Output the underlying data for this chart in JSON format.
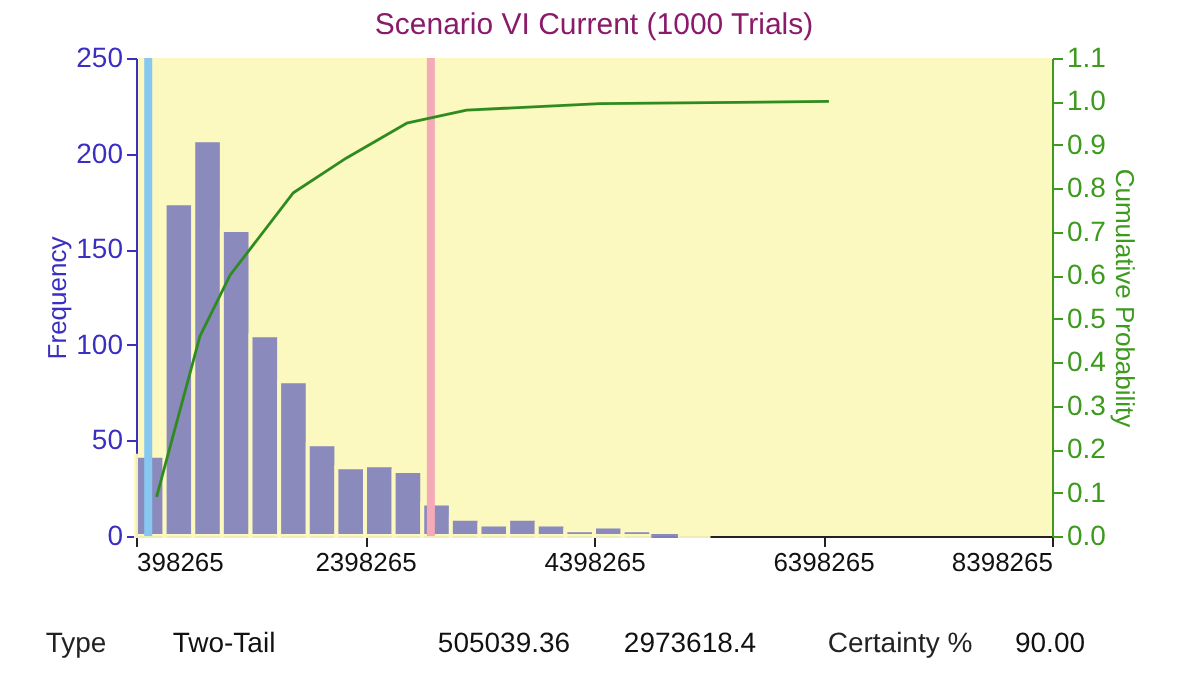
{
  "chart_data": {
    "type": "histogram",
    "title": "Scenario VI Current (1000 Trials)",
    "ylabel": "Frequency",
    "y2label": "Cumulative Probability",
    "bins": [
      398265,
      648265,
      898265,
      1148265,
      1398265,
      1648265,
      1898265,
      2148265,
      2398265,
      2648265,
      2898265,
      3148265,
      3398265,
      3648265,
      3898265,
      4148265,
      4398265,
      4648265,
      4898265,
      5148265,
      5398265
    ],
    "values": [
      42,
      174,
      207,
      160,
      105,
      81,
      48,
      36,
      37,
      34,
      17,
      9,
      6,
      9,
      6,
      3,
      5,
      3,
      0,
      2
    ],
    "color": "#8585bd",
    "series": [
      {
        "type": "line",
        "axis": "y2",
        "color": "#2e8b1e",
        "x": [
          578000,
          957000,
          1219000,
          1773000,
          2237000,
          2762000,
          3286000,
          4450000,
          6450000
        ],
        "values": [
          0.09,
          0.46,
          0.6,
          0.79,
          0.87,
          0.95,
          0.98,
          0.995,
          1.0
        ]
      }
    ],
    "xlim": [
      398265,
      8398265
    ],
    "xticks": [
      398265,
      2398265,
      4398265,
      6398265,
      8398265
    ],
    "ylim": [
      0,
      250
    ],
    "yticks": [
      0,
      50,
      100,
      150,
      200,
      250
    ],
    "y2lim": [
      0,
      1.1
    ],
    "y2ticks": [
      {
        "value": 0,
        "label": "0.0"
      },
      0.1,
      0.2,
      0.3,
      0.4,
      0.5,
      0.6,
      0.7,
      0.8,
      0.9,
      {
        "value": 1,
        "label": "1.0"
      },
      1.1
    ],
    "ref_lines": [
      {
        "axis": "x",
        "value": 505039.36,
        "color": "#86c8f0"
      },
      {
        "axis": "x",
        "value": 2973618.4,
        "color": "#f5aab8"
      }
    ],
    "annotations": [
      "Type",
      "Two-Tail",
      "505039.36",
      "2973618.4",
      "Certainty %",
      "90.00"
    ],
    "grid": false
  }
}
